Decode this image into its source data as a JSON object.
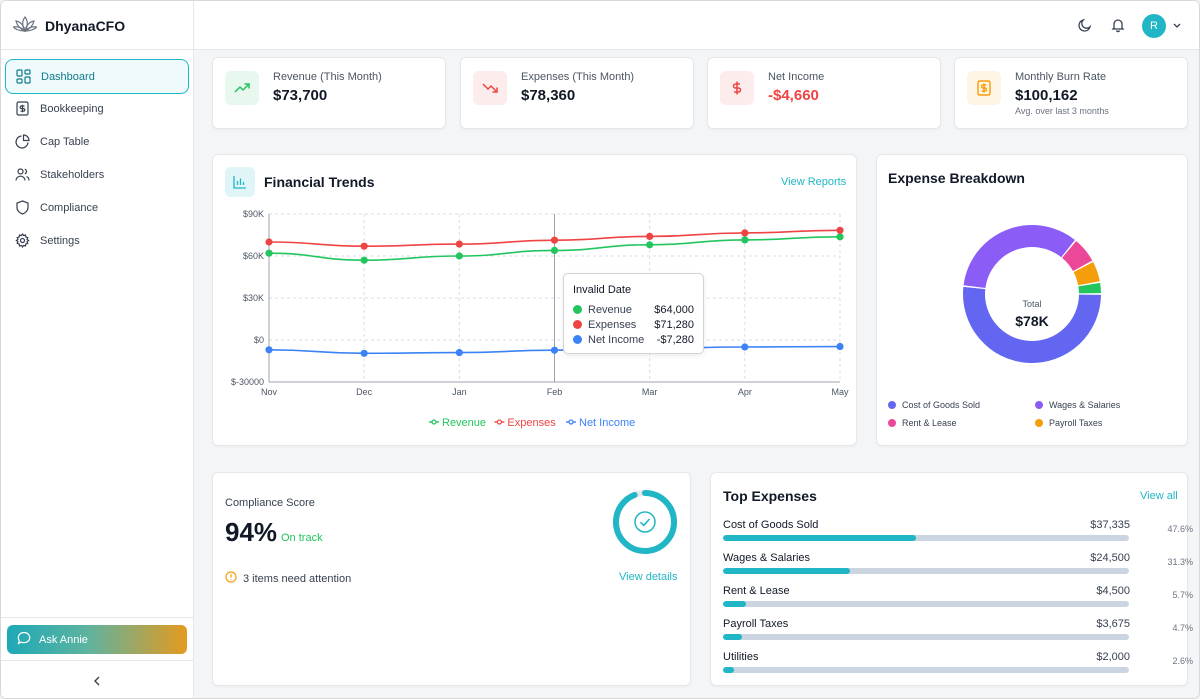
{
  "app": {
    "name": "DhyanaCFO"
  },
  "sidebar": {
    "items": [
      {
        "label": "Dashboard",
        "icon": "grid-icon",
        "active": true
      },
      {
        "label": "Bookkeeping",
        "icon": "dollar-file-icon"
      },
      {
        "label": "Cap Table",
        "icon": "pie-icon"
      },
      {
        "label": "Stakeholders",
        "icon": "users-icon"
      },
      {
        "label": "Compliance",
        "icon": "shield-icon"
      },
      {
        "label": "Settings",
        "icon": "gear-icon"
      }
    ],
    "ask_label": "Ask Annie"
  },
  "header": {
    "avatar_initial": "R"
  },
  "kpis": [
    {
      "label": "Revenue (This Month)",
      "value": "$73,700",
      "sub": "",
      "icon": "trend-up-icon",
      "color": "#22c55e"
    },
    {
      "label": "Expenses (This Month)",
      "value": "$78,360",
      "sub": "",
      "icon": "trend-down-icon",
      "color": "#ef4444"
    },
    {
      "label": "Net Income",
      "value": "-$4,660",
      "sub": "",
      "icon": "dollar-icon",
      "color": "#ef4444"
    },
    {
      "label": "Monthly Burn Rate",
      "value": "$100,162",
      "sub": "Avg. over last 3 months",
      "icon": "dollar-doc-icon",
      "color": "#f59e0b"
    }
  ],
  "trends": {
    "title": "Financial Trends",
    "link": "View Reports",
    "tooltip": {
      "title": "Invalid Date",
      "rows": [
        {
          "name": "Revenue",
          "value": "$64,000"
        },
        {
          "name": "Expenses",
          "value": "$71,280"
        },
        {
          "name": "Net Income",
          "value": "-$7,280"
        }
      ]
    }
  },
  "chart_data": [
    {
      "type": "line",
      "title": "Financial Trends",
      "x": [
        "Nov",
        "Dec",
        "Jan",
        "Feb",
        "Mar",
        "Apr",
        "May"
      ],
      "y_ticks": [
        "$90K",
        "$60K",
        "$30K",
        "$0",
        "$-30000"
      ],
      "ylim": [
        -30000,
        90000
      ],
      "grid": true,
      "legend": "bottom",
      "series": [
        {
          "name": "Revenue",
          "color": "#22c55e",
          "values": [
            62000,
            57000,
            60000,
            64000,
            68000,
            71500,
            73700
          ]
        },
        {
          "name": "Expenses",
          "color": "#ef4444",
          "values": [
            70000,
            67000,
            68500,
            71280,
            74000,
            76500,
            78360
          ]
        },
        {
          "name": "Net Income",
          "color": "#3b82f6",
          "values": [
            -7000,
            -9500,
            -9000,
            -7280,
            -6000,
            -5000,
            -4660
          ]
        }
      ]
    },
    {
      "type": "pie",
      "title": "Expense Breakdown",
      "center_label": "Total",
      "center_value": "$78K",
      "categories": [
        "Cost of Goods Sold",
        "Wages & Salaries",
        "Rent & Lease",
        "Payroll Taxes",
        "Utilities"
      ],
      "values": [
        37335,
        24500,
        4500,
        3675,
        2000
      ],
      "colors": [
        "#6366f1",
        "#8b5cf6",
        "#ec4899",
        "#f59e0b",
        "#22c55e"
      ],
      "legend_labels": [
        "Cost of Goods Sold",
        "Wages & Salaries",
        "Rent & Lease",
        "Payroll Taxes"
      ]
    }
  ],
  "compliance": {
    "label": "Compliance Score",
    "score": "94%",
    "status": "On track",
    "attention": "3 items need attention",
    "link": "View details",
    "progress": 0.94
  },
  "top_expenses": {
    "title": "Top Expenses",
    "link": "View all",
    "items": [
      {
        "name": "Cost of Goods Sold",
        "amount": "$37,335",
        "pct": "47.6%",
        "share": 0.476
      },
      {
        "name": "Wages & Salaries",
        "amount": "$24,500",
        "pct": "31.3%",
        "share": 0.313
      },
      {
        "name": "Rent & Lease",
        "amount": "$4,500",
        "pct": "5.7%",
        "share": 0.057
      },
      {
        "name": "Payroll Taxes",
        "amount": "$3,675",
        "pct": "4.7%",
        "share": 0.047
      },
      {
        "name": "Utilities",
        "amount": "$2,000",
        "pct": "2.6%",
        "share": 0.026
      }
    ]
  }
}
